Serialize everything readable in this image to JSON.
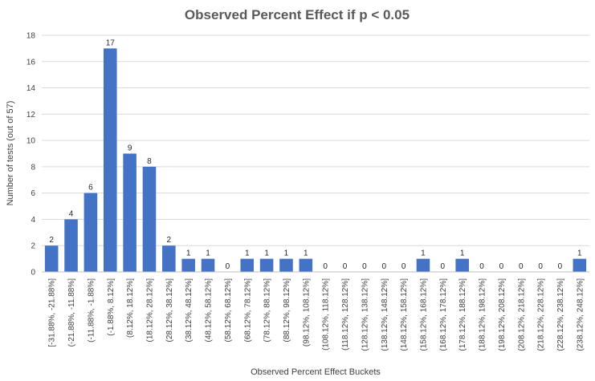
{
  "chart_data": {
    "type": "bar",
    "title": "Observed Percent Effect if p < 0.05",
    "xlabel": "Observed Percent Effect Buckets",
    "ylabel": "Number of tests (out of 57)",
    "ylim": [
      0,
      18
    ],
    "yticks": [
      0,
      2,
      4,
      6,
      8,
      10,
      12,
      14,
      16,
      18
    ],
    "grid": true,
    "legend": "none",
    "bar_color": "#4472C4",
    "categories": [
      "[-31.88%, -21.88%]",
      "(-21.88%, -11.88%]",
      "(-11.88%, -1.88%]",
      "(-1.88%, 8.12%]",
      "(8.12%, 18.12%]",
      "(18.12%, 28.12%]",
      "(28.12%, 38.12%]",
      "(38.12%, 48.12%]",
      "(48.12%, 58.12%]",
      "(58.12%, 68.12%]",
      "(68.12%, 78.12%]",
      "(78.12%, 88.12%]",
      "(88.12%, 98.12%]",
      "(98.12%, 108.12%]",
      "(108.12%, 118.12%]",
      "(118.12%, 128.12%]",
      "(128.12%, 138.12%]",
      "(138.12%, 148.12%]",
      "(148.12%, 158.12%]",
      "(158.12%, 168.12%]",
      "(168.12%, 178.12%]",
      "(178.12%, 188.12%]",
      "(188.12%, 198.12%]",
      "(198.12%, 208.12%]",
      "(208.12%, 218.12%]",
      "(218.12%, 228.12%]",
      "(228.12%, 238.12%]",
      "(238.12%, 248.12%]"
    ],
    "values": [
      2,
      4,
      6,
      17,
      9,
      8,
      2,
      1,
      1,
      0,
      1,
      1,
      1,
      1,
      0,
      0,
      0,
      0,
      0,
      1,
      0,
      1,
      0,
      0,
      0,
      0,
      0,
      1
    ]
  }
}
